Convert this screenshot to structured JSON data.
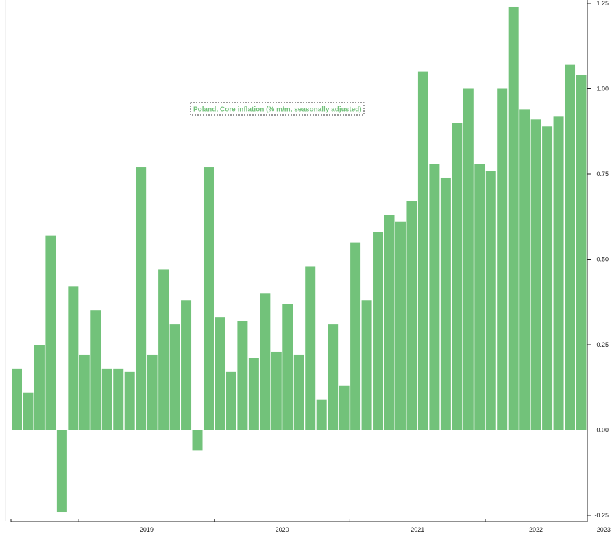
{
  "chart_data": {
    "type": "bar",
    "legend": "Poland, Core inflation (% m/m, seasonally adjusted)",
    "legend_position": "top-center",
    "ylim": [
      -0.25,
      1.25
    ],
    "y_ticks": [
      "1.25",
      "1.00",
      "0.75",
      "0.50",
      "0.25",
      "0.00",
      "-0.25"
    ],
    "y_axis_side": "right",
    "grid": false,
    "bar_color": "#72c27a",
    "start": "2018-07",
    "x_year_labels": [
      "2019",
      "2020",
      "2021",
      "2022",
      "2023"
    ],
    "values": [
      0.18,
      0.11,
      0.25,
      0.57,
      -0.24,
      0.42,
      0.22,
      0.35,
      0.18,
      0.18,
      0.17,
      0.77,
      0.22,
      0.47,
      0.31,
      0.38,
      -0.06,
      0.77,
      0.33,
      0.17,
      0.32,
      0.21,
      0.4,
      0.23,
      0.37,
      0.22,
      0.48,
      0.09,
      0.31,
      0.13,
      0.55,
      0.38,
      0.58,
      0.63,
      0.61,
      0.67,
      1.05,
      0.78,
      0.74,
      0.9,
      1.0,
      0.78,
      0.76,
      1.0,
      1.24,
      0.94,
      0.91,
      0.89,
      0.92,
      1.07,
      1.04
    ]
  }
}
